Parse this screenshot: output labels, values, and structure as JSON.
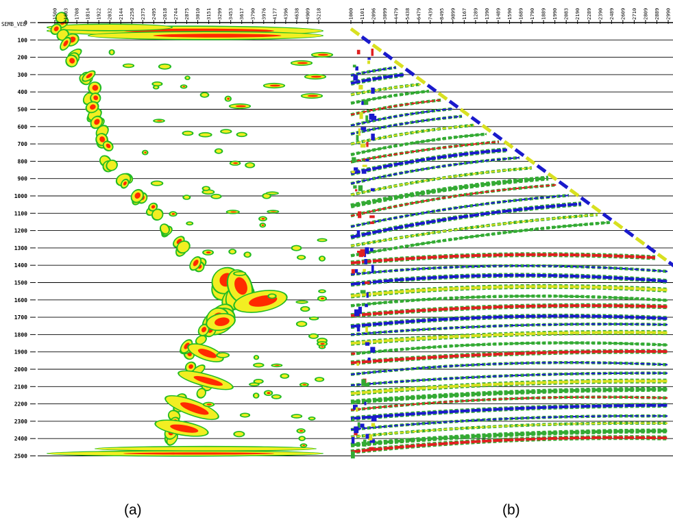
{
  "header_label": "SEMB_VEL",
  "panel_a": {
    "caption": "(a)",
    "x_ticks": [
      "1500",
      "1603",
      "1708",
      "1814",
      "1922",
      "2032",
      "2144",
      "2258",
      "2375",
      "2495",
      "2618",
      "2744",
      "2875",
      "3010",
      "3151",
      "3299",
      "3453",
      "3617",
      "3790",
      "3976",
      "4177",
      "4396",
      "4638",
      "4909",
      "5218"
    ]
  },
  "panel_b": {
    "caption": "(b)",
    "x_ticks": [
      "1000",
      "1101",
      "2096",
      "3099",
      "4479",
      "5438",
      "6479",
      "7439",
      "8495",
      "9899",
      "1167",
      "1289",
      "1390",
      "1489",
      "1590",
      "1689",
      "1790",
      "1889",
      "1990",
      "2083",
      "2190",
      "2289",
      "2390",
      "2489",
      "2609",
      "2710",
      "2809",
      "2889",
      "2990"
    ]
  },
  "y_ticks": [
    "0",
    "100",
    "200",
    "300",
    "400",
    "500",
    "600",
    "700",
    "800",
    "900",
    "1000",
    "1100",
    "1200",
    "1300",
    "1400",
    "1500",
    "1600",
    "1700",
    "1800",
    "1900",
    "2000",
    "2100",
    "2200",
    "2300",
    "2400",
    "2500"
  ],
  "colors": {
    "axis": "#000000",
    "semblance_low": "#22bb22",
    "semblance_mid": "#f2ee22",
    "semblance_high": "#ff2a00",
    "seismic_neg": "#1a1acc",
    "seismic_mid": "#d8e020",
    "seismic_low": "#33aa33",
    "seismic_pos": "#e02020"
  }
}
